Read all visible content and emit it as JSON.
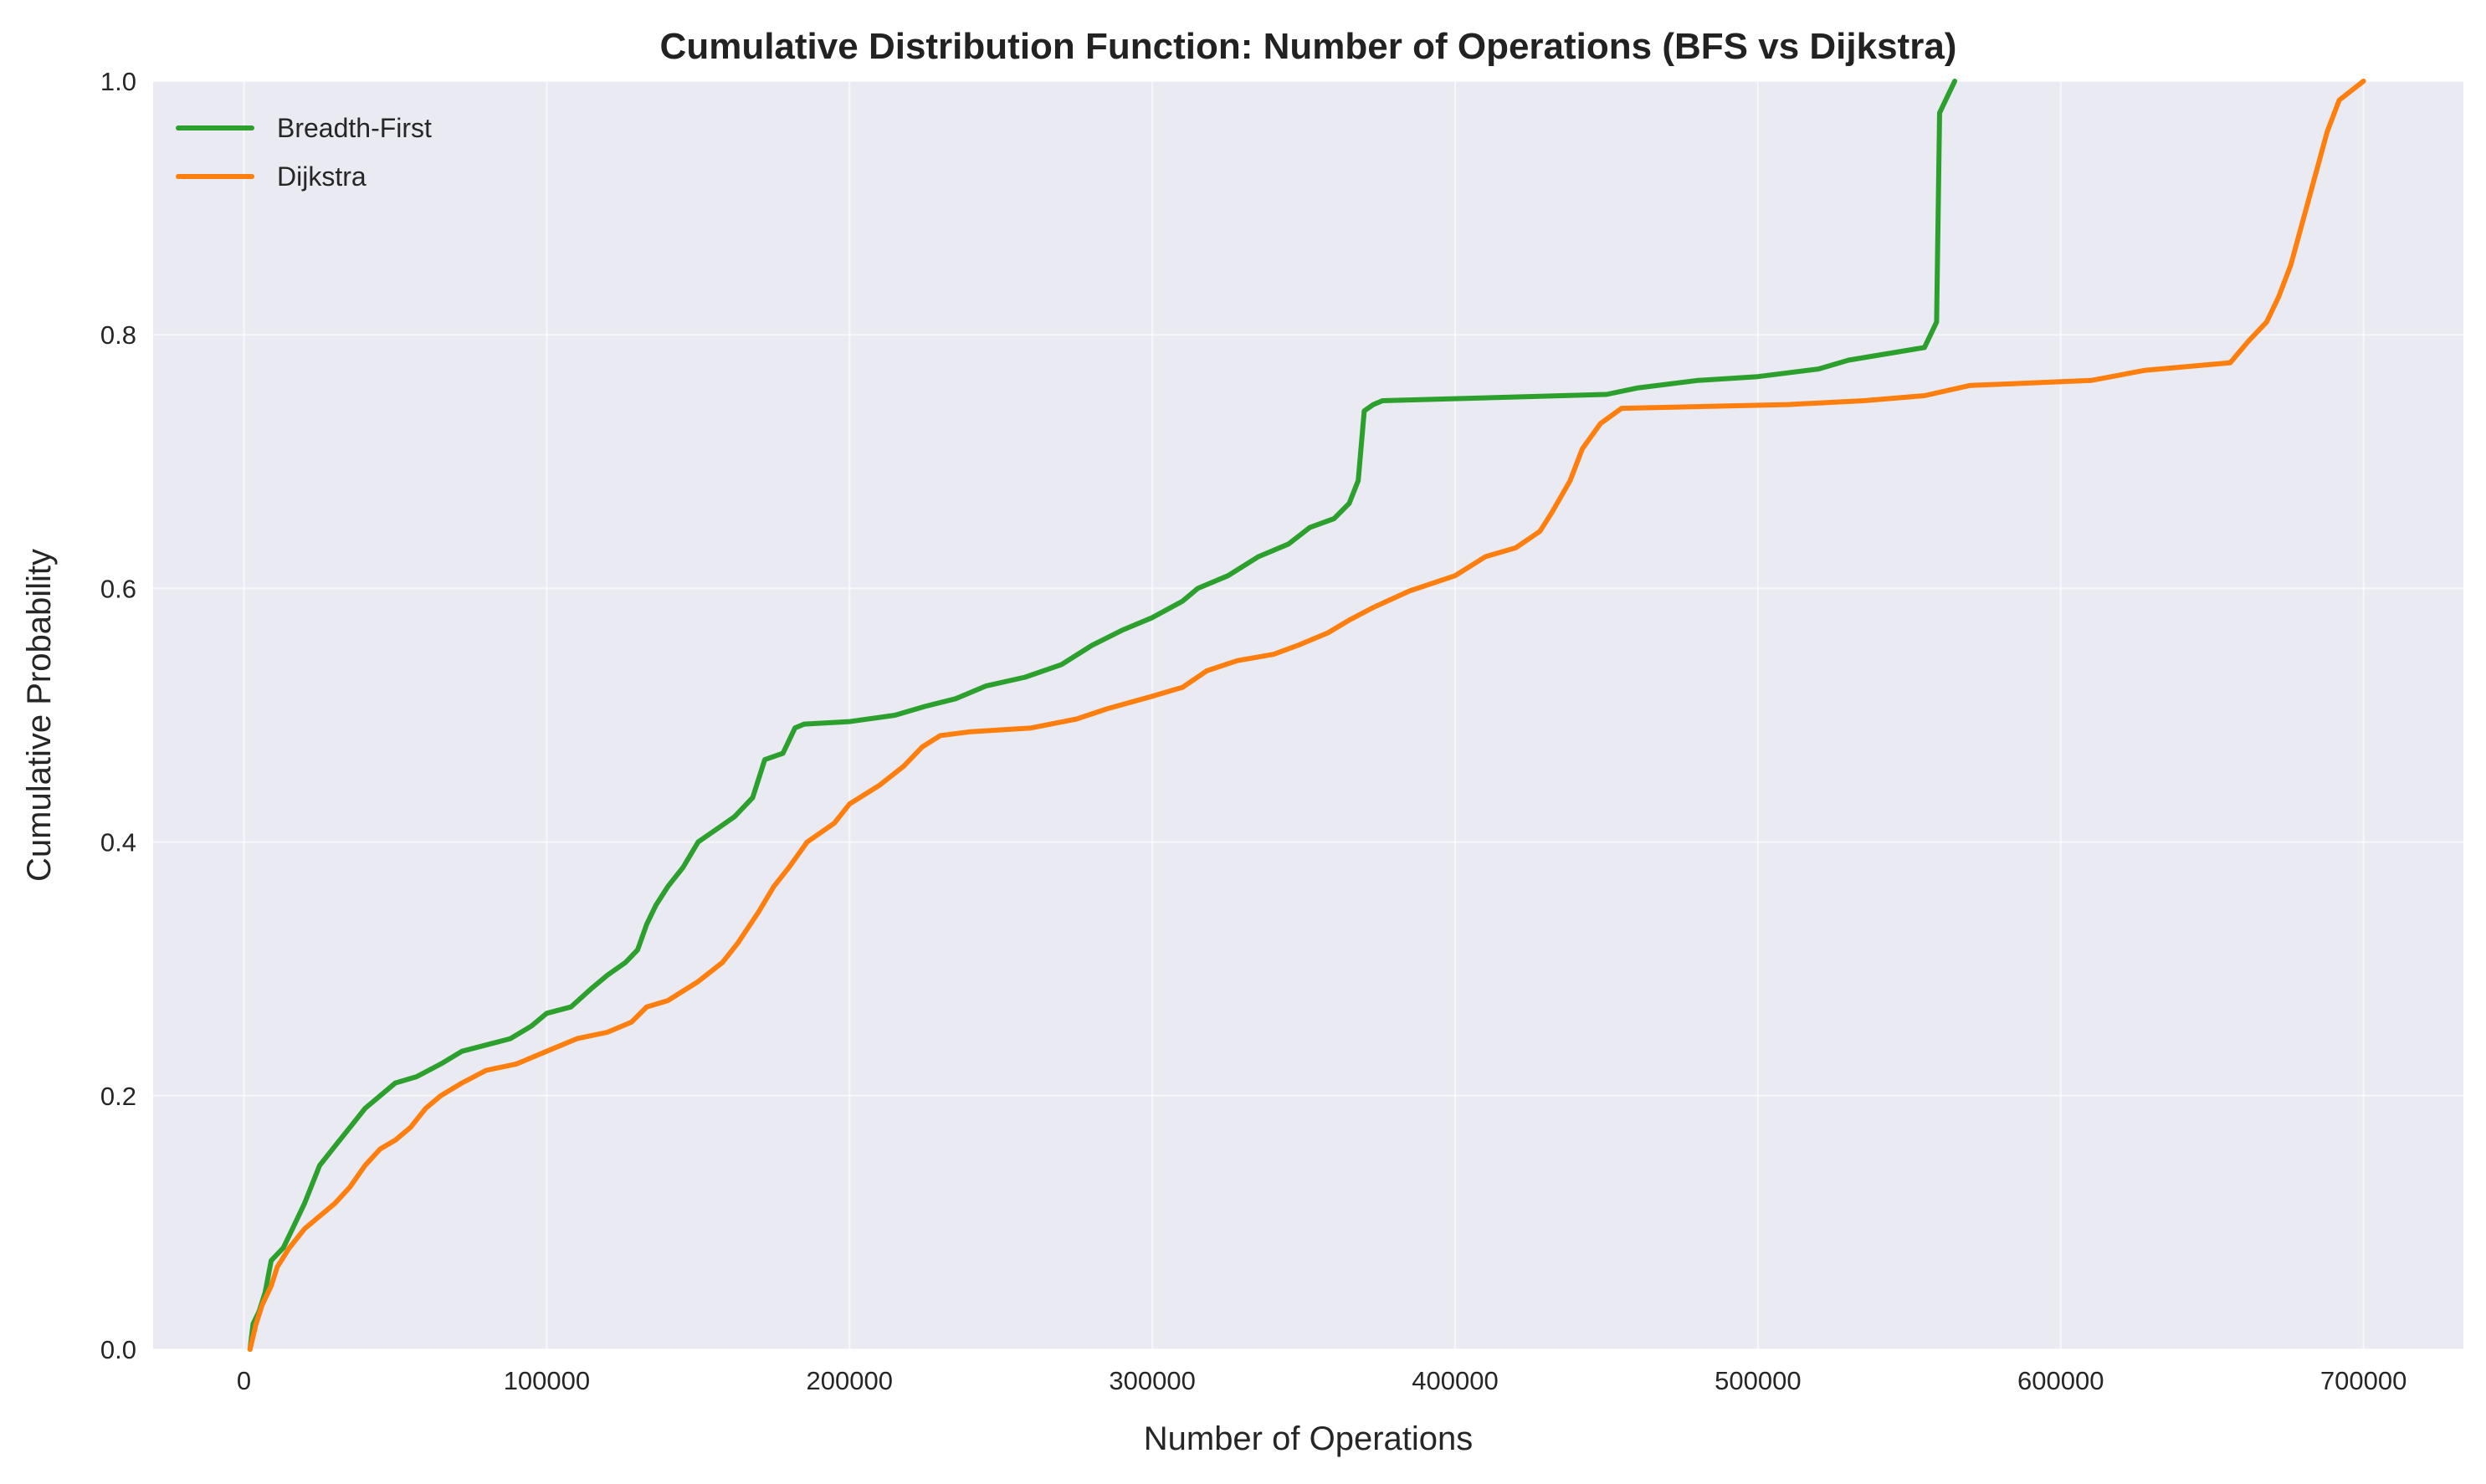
{
  "chart_data": {
    "type": "line",
    "title": "Cumulative Distribution Function: Number of Operations (BFS vs Dijkstra)",
    "xlabel": "Number of Operations",
    "ylabel": "Cumulative Probability",
    "xlim": [
      -30000,
      733000
    ],
    "ylim": [
      0,
      1
    ],
    "xticks": [
      0,
      100000,
      200000,
      300000,
      400000,
      500000,
      600000,
      700000
    ],
    "xtick_labels": [
      "0",
      "100000",
      "200000",
      "300000",
      "400000",
      "500000",
      "600000",
      "700000"
    ],
    "yticks": [
      0,
      0.2,
      0.4,
      0.6,
      0.8,
      1.0
    ],
    "ytick_labels": [
      "0.0",
      "0.2",
      "0.4",
      "0.6",
      "0.8",
      "1.0"
    ],
    "grid": true,
    "legend_position": "top-left",
    "background_color": "#eaeaf2",
    "series": [
      {
        "name": "Breadth-First",
        "color": "#2ca02c",
        "points": [
          [
            2000,
            0.0
          ],
          [
            3000,
            0.02
          ],
          [
            5000,
            0.03
          ],
          [
            7000,
            0.045
          ],
          [
            9000,
            0.07
          ],
          [
            13000,
            0.08
          ],
          [
            16000,
            0.095
          ],
          [
            20000,
            0.115
          ],
          [
            25000,
            0.145
          ],
          [
            30000,
            0.16
          ],
          [
            35000,
            0.175
          ],
          [
            40000,
            0.19
          ],
          [
            45000,
            0.2
          ],
          [
            50000,
            0.21
          ],
          [
            57000,
            0.215
          ],
          [
            65000,
            0.225
          ],
          [
            72000,
            0.235
          ],
          [
            80000,
            0.24
          ],
          [
            88000,
            0.245
          ],
          [
            95000,
            0.255
          ],
          [
            100000,
            0.265
          ],
          [
            108000,
            0.27
          ],
          [
            115000,
            0.285
          ],
          [
            120000,
            0.295
          ],
          [
            126000,
            0.305
          ],
          [
            130000,
            0.315
          ],
          [
            133000,
            0.335
          ],
          [
            136000,
            0.35
          ],
          [
            140000,
            0.365
          ],
          [
            145000,
            0.38
          ],
          [
            150000,
            0.4
          ],
          [
            156000,
            0.41
          ],
          [
            162000,
            0.42
          ],
          [
            168000,
            0.435
          ],
          [
            172000,
            0.465
          ],
          [
            178000,
            0.47
          ],
          [
            182000,
            0.49
          ],
          [
            185000,
            0.493
          ],
          [
            200000,
            0.495
          ],
          [
            215000,
            0.5
          ],
          [
            225000,
            0.507
          ],
          [
            235000,
            0.513
          ],
          [
            245000,
            0.523
          ],
          [
            258000,
            0.53
          ],
          [
            270000,
            0.54
          ],
          [
            280000,
            0.555
          ],
          [
            290000,
            0.567
          ],
          [
            300000,
            0.577
          ],
          [
            310000,
            0.59
          ],
          [
            315000,
            0.6
          ],
          [
            325000,
            0.61
          ],
          [
            335000,
            0.625
          ],
          [
            345000,
            0.635
          ],
          [
            352000,
            0.648
          ],
          [
            360000,
            0.655
          ],
          [
            365000,
            0.667
          ],
          [
            368000,
            0.685
          ],
          [
            370000,
            0.74
          ],
          [
            373000,
            0.745
          ],
          [
            376000,
            0.748
          ],
          [
            450000,
            0.753
          ],
          [
            460000,
            0.758
          ],
          [
            480000,
            0.764
          ],
          [
            500000,
            0.767
          ],
          [
            520000,
            0.773
          ],
          [
            530000,
            0.78
          ],
          [
            555000,
            0.79
          ],
          [
            559000,
            0.81
          ],
          [
            560000,
            0.975
          ],
          [
            563000,
            0.99
          ],
          [
            565000,
            1.0
          ]
        ]
      },
      {
        "name": "Dijkstra",
        "color": "#ff7f0e",
        "points": [
          [
            2000,
            0.0
          ],
          [
            4000,
            0.02
          ],
          [
            6000,
            0.035
          ],
          [
            9000,
            0.05
          ],
          [
            11000,
            0.065
          ],
          [
            15000,
            0.08
          ],
          [
            20000,
            0.095
          ],
          [
            25000,
            0.105
          ],
          [
            30000,
            0.115
          ],
          [
            35000,
            0.128
          ],
          [
            40000,
            0.145
          ],
          [
            45000,
            0.158
          ],
          [
            50000,
            0.165
          ],
          [
            55000,
            0.175
          ],
          [
            60000,
            0.19
          ],
          [
            65000,
            0.2
          ],
          [
            72000,
            0.21
          ],
          [
            80000,
            0.22
          ],
          [
            90000,
            0.225
          ],
          [
            100000,
            0.235
          ],
          [
            110000,
            0.245
          ],
          [
            120000,
            0.25
          ],
          [
            128000,
            0.258
          ],
          [
            133000,
            0.27
          ],
          [
            140000,
            0.275
          ],
          [
            150000,
            0.29
          ],
          [
            158000,
            0.305
          ],
          [
            163000,
            0.32
          ],
          [
            170000,
            0.345
          ],
          [
            175000,
            0.365
          ],
          [
            180000,
            0.38
          ],
          [
            186000,
            0.4
          ],
          [
            195000,
            0.415
          ],
          [
            200000,
            0.43
          ],
          [
            210000,
            0.445
          ],
          [
            218000,
            0.46
          ],
          [
            224000,
            0.475
          ],
          [
            230000,
            0.484
          ],
          [
            240000,
            0.487
          ],
          [
            260000,
            0.49
          ],
          [
            275000,
            0.497
          ],
          [
            285000,
            0.505
          ],
          [
            300000,
            0.515
          ],
          [
            310000,
            0.522
          ],
          [
            318000,
            0.535
          ],
          [
            328000,
            0.543
          ],
          [
            340000,
            0.548
          ],
          [
            348000,
            0.555
          ],
          [
            358000,
            0.565
          ],
          [
            365000,
            0.575
          ],
          [
            373000,
            0.585
          ],
          [
            385000,
            0.598
          ],
          [
            400000,
            0.61
          ],
          [
            410000,
            0.625
          ],
          [
            420000,
            0.632
          ],
          [
            428000,
            0.645
          ],
          [
            432000,
            0.66
          ],
          [
            438000,
            0.685
          ],
          [
            442000,
            0.71
          ],
          [
            448000,
            0.73
          ],
          [
            455000,
            0.742
          ],
          [
            510000,
            0.745
          ],
          [
            535000,
            0.748
          ],
          [
            555000,
            0.752
          ],
          [
            570000,
            0.76
          ],
          [
            610000,
            0.764
          ],
          [
            628000,
            0.772
          ],
          [
            656000,
            0.778
          ],
          [
            662000,
            0.795
          ],
          [
            668000,
            0.81
          ],
          [
            672000,
            0.83
          ],
          [
            676000,
            0.855
          ],
          [
            680000,
            0.89
          ],
          [
            684000,
            0.925
          ],
          [
            688000,
            0.96
          ],
          [
            692000,
            0.985
          ],
          [
            700000,
            1.0
          ]
        ]
      }
    ]
  }
}
